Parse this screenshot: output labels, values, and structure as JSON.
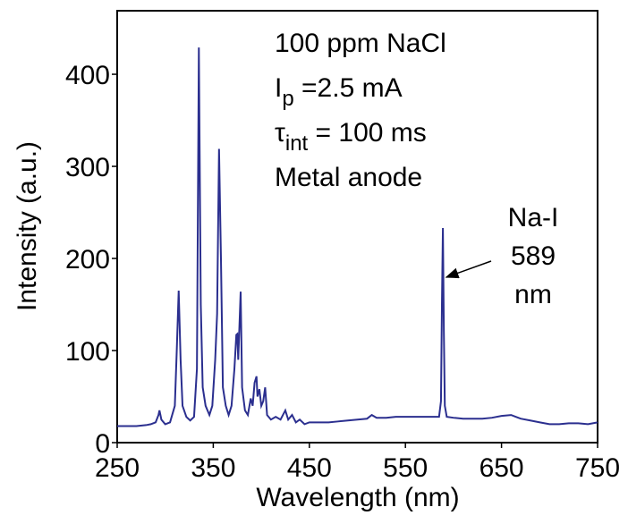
{
  "chart_data": {
    "type": "line",
    "xlabel": "Wavelength (nm)",
    "ylabel": "Intensity (a.u.)",
    "xlim": [
      250,
      750
    ],
    "ylim": [
      0,
      469
    ],
    "xticks": [
      250,
      350,
      450,
      550,
      650,
      750
    ],
    "yticks": [
      0,
      100,
      200,
      300,
      400
    ],
    "annotations": [
      [
        "100 ppm NaCl"
      ],
      [
        "I",
        "p",
        " =2.5 mA"
      ],
      [
        "τ",
        "int",
        " = 100 ms"
      ],
      [
        "Metal anode"
      ]
    ],
    "peak_label": [
      "Na-I",
      "589",
      "nm"
    ],
    "series": [
      {
        "color": "#2b2f8f",
        "x": [
          250,
          260,
          270,
          280,
          285,
          290,
          293,
          294,
          296,
          300,
          305,
          310,
          312,
          314,
          316,
          318,
          322,
          326,
          330,
          333,
          335,
          337,
          339,
          342,
          346,
          349,
          352,
          354,
          356,
          358,
          360,
          363,
          366,
          369,
          372,
          374,
          375,
          376,
          377,
          378.5,
          380,
          383,
          386,
          389,
          391,
          393,
          395,
          396,
          398,
          400,
          402,
          404,
          406,
          410,
          415,
          420,
          425,
          428,
          432,
          436,
          440,
          445,
          450,
          460,
          470,
          480,
          490,
          500,
          510,
          515,
          520,
          530,
          540,
          550,
          560,
          570,
          580,
          585,
          587,
          588,
          589,
          590,
          591,
          593,
          600,
          610,
          620,
          630,
          640,
          650,
          660,
          665,
          670,
          680,
          690,
          700,
          710,
          720,
          730,
          740,
          750
        ],
        "values": [
          18,
          18,
          18,
          19,
          20,
          22,
          30,
          35,
          25,
          20,
          22,
          40,
          100,
          165,
          90,
          40,
          28,
          24,
          28,
          80,
          429,
          150,
          60,
          40,
          30,
          40,
          90,
          140,
          319,
          200,
          60,
          40,
          30,
          40,
          80,
          117,
          118,
          90,
          120,
          164,
          60,
          35,
          30,
          48,
          40,
          65,
          72,
          50,
          58,
          40,
          45,
          60,
          30,
          25,
          28,
          25,
          35,
          25,
          30,
          22,
          25,
          20,
          22,
          22,
          22,
          23,
          24,
          25,
          26,
          30,
          27,
          27,
          28,
          28,
          28,
          28,
          28,
          28,
          45,
          150,
          233,
          120,
          40,
          28,
          27,
          26,
          26,
          26,
          27,
          29,
          30,
          28,
          26,
          24,
          22,
          20,
          20,
          21,
          21,
          20,
          22
        ]
      }
    ]
  }
}
